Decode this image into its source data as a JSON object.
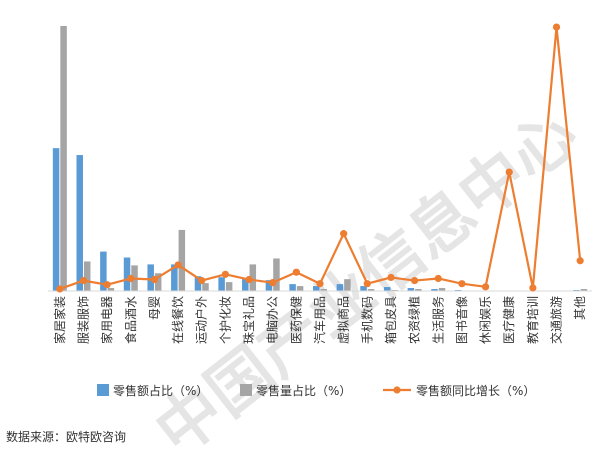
{
  "source_note": "数据来源：欧特欧咨询",
  "watermark": "中国产业信息中心",
  "colors": {
    "series_share_sales": "#5b9bd5",
    "series_share_volume": "#a5a5a5",
    "series_growth": "#ed7d31",
    "watermark": "#d0d0d0",
    "axis": "#d9d9d9"
  },
  "chart_data": {
    "type": "bar",
    "title": "",
    "xlabel": "",
    "ylabel": "",
    "categories": [
      "家居家装",
      "服装服饰",
      "家用电器",
      "食品酒水",
      "母婴",
      "在线餐饮",
      "运动户外",
      "个护化妆",
      "珠宝礼品",
      "电脑办公",
      "医药保健",
      "汽车用品",
      "虚拟商品",
      "手机数码",
      "箱包皮具",
      "农资绿植",
      "生活服务",
      "图书音像",
      "休闲娱乐",
      "医疗健康",
      "教育培训",
      "交通旅游",
      "其他"
    ],
    "series": [
      {
        "name": "零售额占比（%）",
        "kind": "bar",
        "values": [
          14.5,
          13.8,
          4.0,
          3.4,
          2.7,
          2.7,
          1.5,
          1.4,
          1.3,
          1.1,
          0.7,
          0.5,
          0.7,
          0.5,
          0.4,
          0.3,
          0.2,
          0.1,
          0.05,
          0.02,
          0.02,
          0.02,
          0.1
        ]
      },
      {
        "name": "零售量占比（%）",
        "kind": "bar",
        "values": [
          26.9,
          3.0,
          0.3,
          2.6,
          1.8,
          6.2,
          0.8,
          0.9,
          2.7,
          3.3,
          0.5,
          0.2,
          1.2,
          0.2,
          0.1,
          0.2,
          0.3,
          0.05,
          0.02,
          0.01,
          0.01,
          0.01,
          0.2
        ]
      },
      {
        "name": "零售额同比增长（%）",
        "kind": "line",
        "values": [
          2,
          10,
          6,
          12,
          11,
          25,
          10,
          16,
          11,
          8,
          18,
          7,
          55,
          7,
          13,
          10,
          12,
          7,
          4,
          114,
          3,
          253,
          29
        ]
      }
    ],
    "y_left_range": [
      0,
      27
    ],
    "y_right_range": [
      0,
      255
    ],
    "grid": false,
    "legend_position": "bottom"
  }
}
